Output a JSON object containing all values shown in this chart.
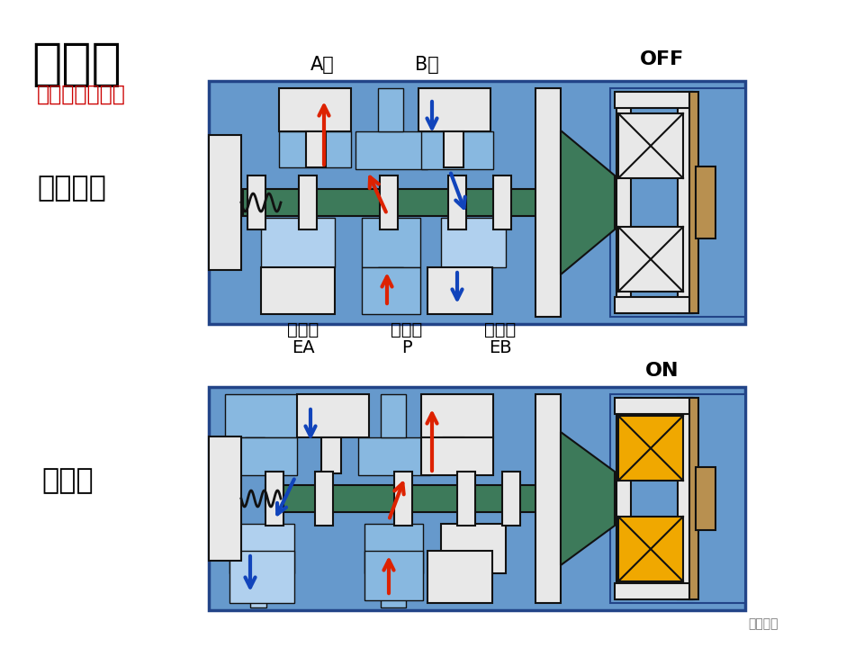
{
  "bg_color": "#ffffff",
  "diag_bg": "#6699cc",
  "title_main": "直动式",
  "title_sub": "（直接配管式）",
  "label_off_state": "不通电时",
  "label_on_state": "通电时",
  "label_off": "OFF",
  "label_on": "ON",
  "label_A": "A口",
  "label_B": "B口",
  "label_EA": "EA",
  "label_P": "P",
  "label_EB": "EB",
  "label_paiqikou1": "排气口",
  "label_yalikou": "压力口",
  "label_paiqikou2": "排气口",
  "watermark": "电工之家",
  "green": "#3d7a5a",
  "light_blue": "#88b8e0",
  "lighter_blue": "#b0d0ee",
  "white_col": "#e8e8e8",
  "brown": "#b89050",
  "red": "#dd2200",
  "blue_arr": "#1144bb",
  "dark": "#111111",
  "yellow": "#f0a800",
  "mid_blue": "#5588bb"
}
